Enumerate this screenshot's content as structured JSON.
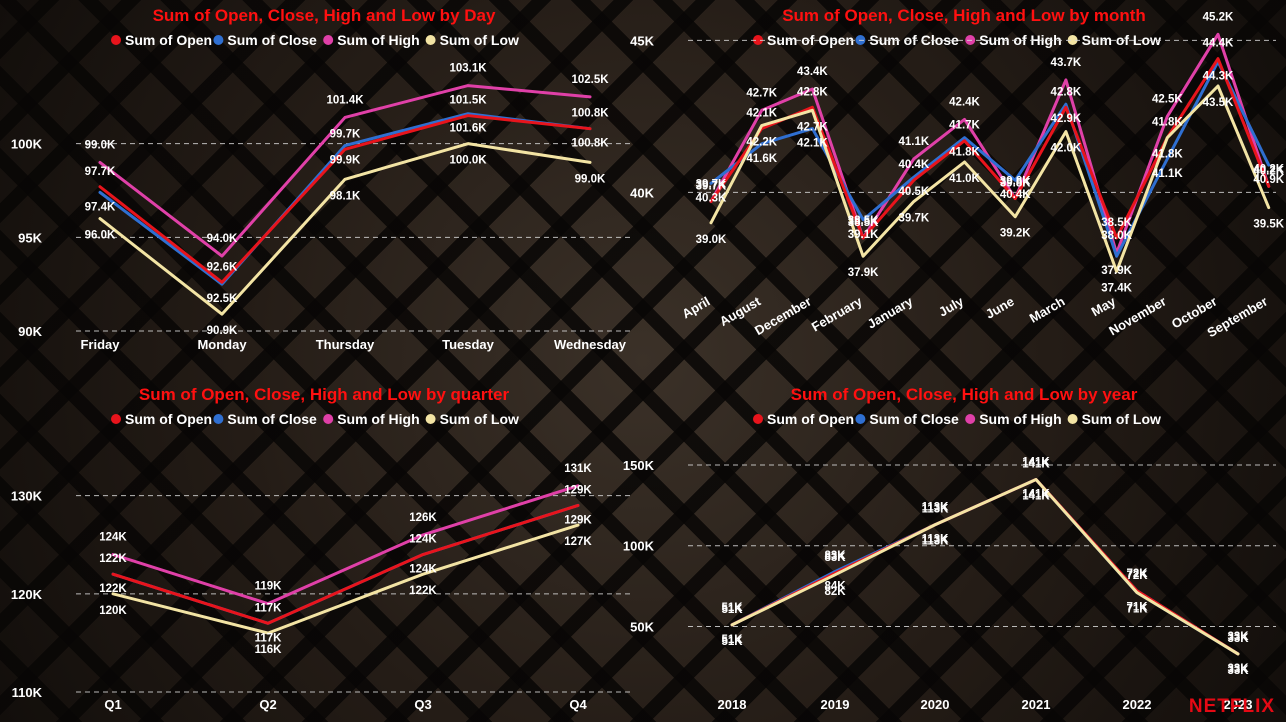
{
  "colors": {
    "open": "#e8141c",
    "close": "#2f6fd1",
    "high": "#e040a8",
    "low": "#f3e4a4",
    "title": "#ff1010"
  },
  "legend_labels": [
    "Sum of Open",
    "Sum of Close",
    "Sum of High",
    "Sum of Low"
  ],
  "logo": "NETFLIX",
  "chart_data": [
    {
      "type": "line",
      "title": "Sum of Open, Close, High and Low by Day",
      "categories": [
        "Friday",
        "Monday",
        "Thursday",
        "Tuesday",
        "Wednesday"
      ],
      "ylim": [
        90000,
        105000
      ],
      "yticks": [
        90000,
        95000,
        100000
      ],
      "ytick_labels": [
        "90K",
        "95K",
        "100K"
      ],
      "grid": true,
      "legend": "top",
      "series": [
        {
          "name": "Sum of Open",
          "values": [
            97700,
            92600,
            99700,
            101500,
            100800
          ],
          "labels": [
            "97.7K",
            "92.6K",
            "99.7K",
            "101.5K",
            "100.8K"
          ]
        },
        {
          "name": "Sum of Close",
          "values": [
            97400,
            92500,
            99900,
            101600,
            100800
          ],
          "labels": [
            "97.4K",
            "92.5K",
            "99.9K",
            "101.6K",
            "100.8K"
          ]
        },
        {
          "name": "Sum of High",
          "values": [
            99000,
            94000,
            101400,
            103100,
            102500
          ],
          "labels": [
            "99.0K",
            "94.0K",
            "101.4K",
            "103.1K",
            "102.5K"
          ]
        },
        {
          "name": "Sum of Low",
          "values": [
            96000,
            90900,
            98100,
            100000,
            99000
          ],
          "labels": [
            "96.0K",
            "90.9K",
            "98.1K",
            "100.0K",
            "99.0K"
          ]
        }
      ]
    },
    {
      "type": "line",
      "title": "Sum of Open, Close, High and Low by month",
      "categories": [
        "April",
        "August",
        "December",
        "February",
        "January",
        "July",
        "June",
        "March",
        "May",
        "November",
        "October",
        "September"
      ],
      "ylim": [
        36000,
        46000
      ],
      "yticks": [
        40000,
        45000
      ],
      "ytick_labels": [
        "40K",
        "45K"
      ],
      "grid": true,
      "legend": "top",
      "series": [
        {
          "name": "Sum of Open",
          "values": [
            39700,
            42100,
            42800,
            38500,
            40400,
            41700,
            39800,
            42800,
            38500,
            41800,
            44400,
            40200
          ],
          "labels": [
            "39.7K",
            "42.1K",
            "42.8K",
            "38.5K",
            "40.4K",
            "41.7K",
            "39.8K",
            "42.8K",
            "38.5K",
            "41.8K",
            "44.4K",
            "40.2K"
          ]
        },
        {
          "name": "Sum of Close",
          "values": [
            40300,
            41600,
            42100,
            39100,
            40500,
            41800,
            40400,
            42900,
            37900,
            41100,
            44300,
            40900
          ],
          "labels": [
            "40.3K",
            "41.6K",
            "42.1K",
            "39.1K",
            "40.5K",
            "41.8K",
            "40.4K",
            "42.9K",
            "37.9K",
            "41.1K",
            "44.3K",
            "40.9K"
          ]
        },
        {
          "name": "Sum of High",
          "values": [
            39700,
            42700,
            43400,
            38500,
            41100,
            42400,
            39800,
            43700,
            38000,
            42500,
            45200,
            40200
          ],
          "labels": [
            "39.7K",
            "42.7K",
            "43.4K",
            "38.5K",
            "41.1K",
            "42.4K",
            "39.8K",
            "43.7K",
            "38.0K",
            "42.5K",
            "45.2K",
            "40.2K"
          ]
        },
        {
          "name": "Sum of Low",
          "values": [
            39000,
            42200,
            42700,
            37900,
            39700,
            41000,
            39200,
            42000,
            37400,
            41800,
            43500,
            39500
          ],
          "labels": [
            "39.0K",
            "42.2K",
            "42.7K",
            "37.9K",
            "39.7K",
            "41.0K",
            "39.2K",
            "42.0K",
            "37.4K",
            "41.8K",
            "43.5K",
            "39.5K"
          ]
        }
      ]
    },
    {
      "type": "line",
      "title": "Sum of Open, Close, High and Low by quarter",
      "categories": [
        "Q1",
        "Q2",
        "Q3",
        "Q4"
      ],
      "ylim": [
        110000,
        132000
      ],
      "yticks": [
        110000,
        120000,
        130000
      ],
      "ytick_labels": [
        "110K",
        "120K",
        "130K"
      ],
      "grid": true,
      "legend": "top",
      "series": [
        {
          "name": "Sum of Open",
          "values": [
            122000,
            117000,
            124000,
            129000
          ],
          "labels": [
            "122K",
            "117K",
            "124K",
            "129K"
          ]
        },
        {
          "name": "Sum of Close",
          "values": [
            122000,
            117000,
            124000,
            129000
          ],
          "labels": [
            "122K",
            "117K",
            "124K",
            "129K"
          ]
        },
        {
          "name": "Sum of High",
          "values": [
            124000,
            119000,
            126000,
            131000
          ],
          "labels": [
            "124K",
            "119K",
            "126K",
            "131K"
          ]
        },
        {
          "name": "Sum of Low",
          "values": [
            120000,
            116000,
            122000,
            127000
          ],
          "labels": [
            "120K",
            "116K",
            "122K",
            "127K"
          ]
        }
      ]
    },
    {
      "type": "line",
      "title": "Sum of Open, Close, High and Low by year",
      "categories": [
        "2018",
        "2019",
        "2020",
        "2021",
        "2022",
        "2023"
      ],
      "ylim": [
        28000,
        150000
      ],
      "yticks": [
        50000,
        100000,
        150000
      ],
      "ytick_labels": [
        "50K",
        "100K",
        "150K"
      ],
      "grid": true,
      "legend": "top",
      "series": [
        {
          "name": "Sum of Open",
          "values": [
            51000,
            83000,
            113000,
            141000,
            72000,
            33000
          ],
          "labels": [
            "51K",
            "83K",
            "113K",
            "141K",
            "72K",
            "33K"
          ]
        },
        {
          "name": "Sum of Close",
          "values": [
            51000,
            84000,
            113000,
            141000,
            71000,
            33000
          ],
          "labels": [
            "51K",
            "84K",
            "113K",
            "141K",
            "71K",
            "33K"
          ]
        },
        {
          "name": "Sum of High",
          "values": [
            51000,
            83000,
            113000,
            141000,
            72000,
            33000
          ],
          "labels": [
            "51K",
            "83K",
            "113K",
            "141K",
            "72K",
            "33K"
          ]
        },
        {
          "name": "Sum of Low",
          "values": [
            51000,
            82000,
            113000,
            141000,
            71000,
            33000
          ],
          "labels": [
            "51K",
            "82K",
            "113K",
            "141K",
            "71K",
            "33K"
          ]
        }
      ]
    }
  ]
}
